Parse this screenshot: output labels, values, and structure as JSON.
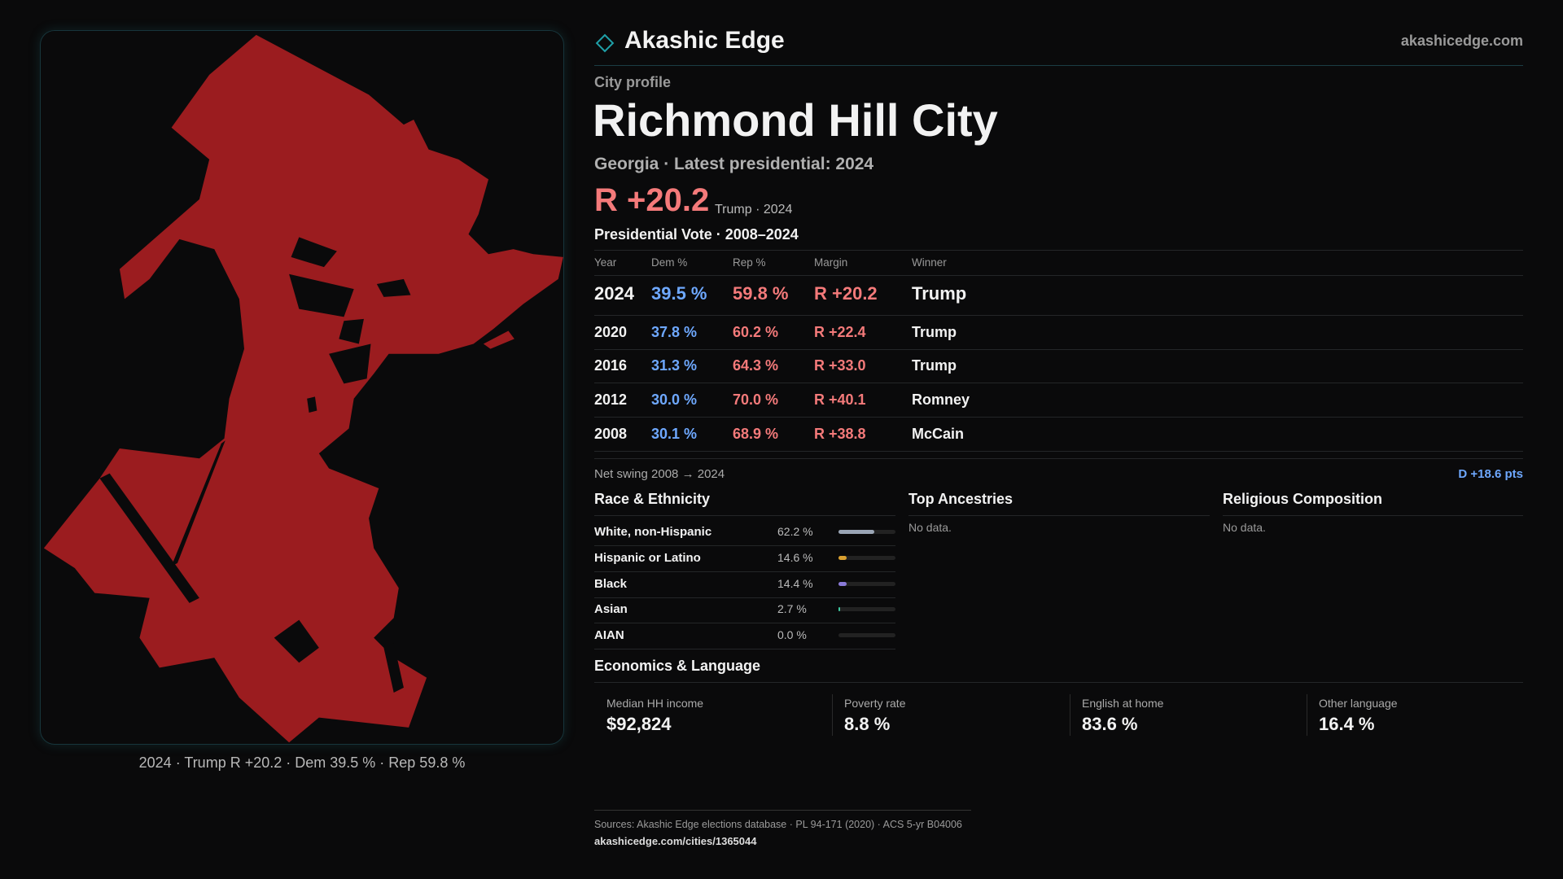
{
  "header": {
    "brand": "Akashic Edge",
    "site": "akashicedge.com"
  },
  "profile": {
    "kicker": "City profile",
    "title": "Richmond Hill City",
    "subtitle": "Georgia · Latest presidential: 2024",
    "margin": "R +20.2",
    "margin_note": "Trump · 2024"
  },
  "votes": {
    "title": "Presidential Vote · 2008–2024",
    "columns": [
      "Year",
      "Dem %",
      "Rep %",
      "Margin",
      "Winner"
    ],
    "rows": [
      [
        "2024",
        "39.5 %",
        "59.8 %",
        "R +20.2",
        "Trump"
      ],
      [
        "2020",
        "37.8 %",
        "60.2 %",
        "R +22.4",
        "Trump"
      ],
      [
        "2016",
        "31.3 %",
        "64.3 %",
        "R +33.0",
        "Trump"
      ],
      [
        "2012",
        "30.0 %",
        "70.0 %",
        "R +40.1",
        "Romney"
      ],
      [
        "2008",
        "30.1 %",
        "68.9 %",
        "R +38.8",
        "McCain"
      ]
    ]
  },
  "swing": {
    "label": "Net swing 2008 → 2024",
    "value": "D +18.6 pts"
  },
  "race": {
    "title": "Race & Ethnicity",
    "rows": [
      {
        "label": "White, non-Hispanic",
        "value": 62.2,
        "value_label": "62.2 %",
        "color": "#9aa5b5"
      },
      {
        "label": "Hispanic or Latino",
        "value": 14.6,
        "value_label": "14.6 %",
        "color": "#d9a030"
      },
      {
        "label": "Black",
        "value": 14.4,
        "value_label": "14.4 %",
        "color": "#8a7ad8"
      },
      {
        "label": "Asian",
        "value": 2.7,
        "value_label": "2.7 %",
        "color": "#3ec9a0"
      },
      {
        "label": "AIAN",
        "value": 0.0,
        "value_label": "0.0 %",
        "color": "#c06060"
      }
    ]
  },
  "ancestries": {
    "title": "Top Ancestries",
    "note": "No data."
  },
  "religion": {
    "title": "Religious Composition",
    "note": "No data."
  },
  "economics": {
    "title": "Economics & Language",
    "cards": [
      {
        "label": "Median HH income",
        "value": "$92,824"
      },
      {
        "label": "Poverty rate",
        "value": "8.8 %"
      },
      {
        "label": "English at home",
        "value": "83.6 %"
      },
      {
        "label": "Other language",
        "value": "16.4 %"
      }
    ]
  },
  "map": {
    "caption": "2024 · Trump R +20.2 · Dem 39.5 % · Rep 59.8 %"
  },
  "footer": {
    "sources": "Sources: Akashic Edge elections database · PL 94-171 (2020) · ACS 5-yr B04006",
    "url": "akashicedge.com/cities/1365044"
  }
}
